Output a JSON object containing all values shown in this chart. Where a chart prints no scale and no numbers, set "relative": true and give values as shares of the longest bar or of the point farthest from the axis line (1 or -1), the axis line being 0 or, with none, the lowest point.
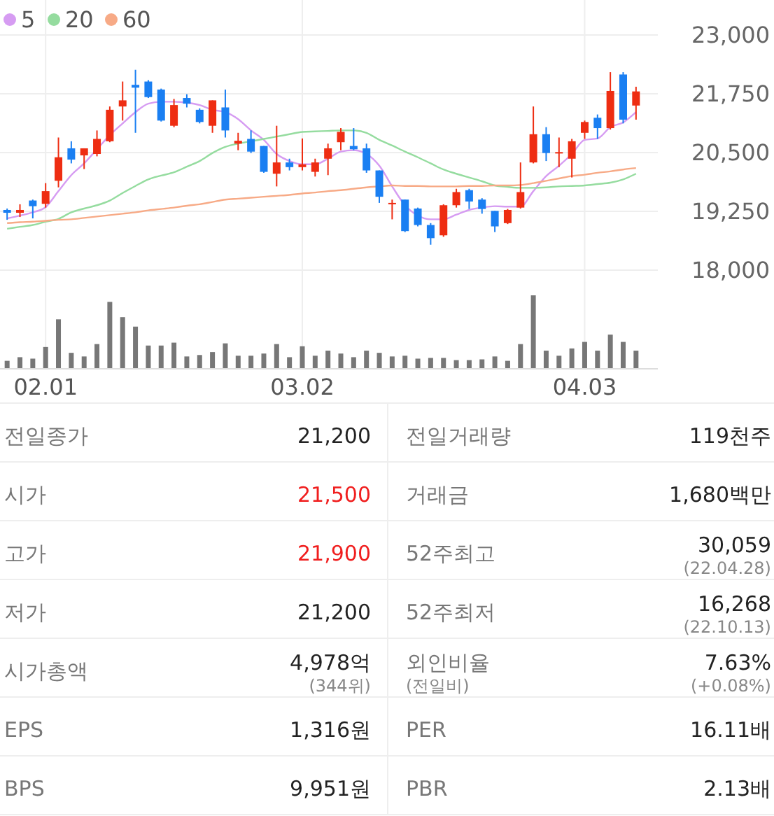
{
  "chart_data": [
    {
      "type": "candlestick",
      "categories": [
        null,
        null,
        null,
        "02.01",
        null,
        null,
        null,
        null,
        null,
        null,
        null,
        null,
        null,
        null,
        null,
        null,
        null,
        null,
        null,
        null,
        null,
        null,
        null,
        "03.02",
        null,
        null,
        null,
        null,
        null,
        null,
        null,
        null,
        null,
        null,
        null,
        null,
        null,
        null,
        null,
        null,
        null,
        null,
        null,
        null,
        null,
        "04.03",
        null,
        null,
        null,
        null
      ],
      "ohlc": [
        [
          19280,
          19310,
          19070,
          19220
        ],
        [
          19220,
          19400,
          19130,
          19280
        ],
        [
          19480,
          19500,
          19100,
          19360
        ],
        [
          19410,
          19850,
          19330,
          19680
        ],
        [
          19900,
          20820,
          19760,
          20400
        ],
        [
          20590,
          20740,
          20270,
          20350
        ],
        [
          20440,
          20590,
          20150,
          20590
        ],
        [
          20470,
          20970,
          20420,
          20790
        ],
        [
          20740,
          21480,
          20720,
          21410
        ],
        [
          21480,
          22010,
          21180,
          21610
        ],
        [
          21940,
          22260,
          20920,
          21880
        ],
        [
          22010,
          22040,
          21660,
          21680
        ],
        [
          21840,
          21860,
          21160,
          21180
        ],
        [
          21070,
          21640,
          21040,
          21510
        ],
        [
          21660,
          21740,
          21460,
          21540
        ],
        [
          21410,
          21440,
          21120,
          21150
        ],
        [
          21070,
          21610,
          20920,
          21610
        ],
        [
          21460,
          21840,
          20820,
          20970
        ],
        [
          20690,
          20920,
          20550,
          20750
        ],
        [
          20790,
          20970,
          20490,
          20520
        ],
        [
          20640,
          20640,
          20070,
          20090
        ],
        [
          20050,
          21070,
          19780,
          20290
        ],
        [
          20290,
          20370,
          20120,
          20190
        ],
        [
          20190,
          20800,
          20120,
          20250
        ],
        [
          20090,
          20370,
          19990,
          20290
        ],
        [
          20370,
          20690,
          20020,
          20590
        ],
        [
          20720,
          21020,
          20550,
          20940
        ],
        [
          20640,
          21020,
          20550,
          20570
        ],
        [
          20590,
          20690,
          20070,
          20120
        ],
        [
          20120,
          20120,
          19430,
          19560
        ],
        [
          19400,
          19500,
          19080,
          19430
        ],
        [
          19500,
          19500,
          18810,
          18830
        ],
        [
          19310,
          19330,
          18930,
          18960
        ],
        [
          18960,
          19000,
          18540,
          18680
        ],
        [
          18740,
          19400,
          18710,
          19380
        ],
        [
          19380,
          19730,
          19330,
          19660
        ],
        [
          19700,
          19730,
          19300,
          19460
        ],
        [
          19500,
          19530,
          19200,
          19300
        ],
        [
          19260,
          19260,
          18810,
          18930
        ],
        [
          19000,
          19300,
          18980,
          19280
        ],
        [
          19330,
          20290,
          19310,
          19660
        ],
        [
          20290,
          21480,
          20270,
          20890
        ],
        [
          20890,
          21040,
          20320,
          20490
        ],
        [
          20480,
          20820,
          20190,
          20510
        ],
        [
          20370,
          20790,
          19970,
          20740
        ],
        [
          20920,
          21180,
          20790,
          21150
        ],
        [
          21240,
          21310,
          20790,
          21020
        ],
        [
          21020,
          22210,
          20990,
          21810
        ],
        [
          22160,
          22210,
          21120,
          21200
        ],
        [
          21500,
          21900,
          21200,
          21800
        ]
      ],
      "colors": [
        "#1a7ff2",
        "#ee2d12",
        "#1a7ff2",
        "#ee2d12",
        "#ee2d12",
        "#1a7ff2",
        "#ee2d12",
        "#ee2d12",
        "#ee2d12",
        "#ee2d12",
        "#1a7ff2",
        "#1a7ff2",
        "#1a7ff2",
        "#ee2d12",
        "#1a7ff2",
        "#1a7ff2",
        "#ee2d12",
        "#1a7ff2",
        "#ee2d12",
        "#1a7ff2",
        "#1a7ff2",
        "#ee2d12",
        "#1a7ff2",
        "#ee2d12",
        "#ee2d12",
        "#ee2d12",
        "#ee2d12",
        "#1a7ff2",
        "#1a7ff2",
        "#1a7ff2",
        "#ee2d12",
        "#1a7ff2",
        "#1a7ff2",
        "#1a7ff2",
        "#ee2d12",
        "#ee2d12",
        "#1a7ff2",
        "#1a7ff2",
        "#1a7ff2",
        "#ee2d12",
        "#ee2d12",
        "#ee2d12",
        "#1a7ff2",
        "#ee2d12",
        "#ee2d12",
        "#ee2d12",
        "#1a7ff2",
        "#ee2d12",
        "#1a7ff2",
        "#ee2d12"
      ],
      "series": [
        {
          "type": "line",
          "name": "5",
          "color": "#d69cf2",
          "values": [
            19100,
            19160,
            19230,
            19340,
            19680,
            20020,
            20270,
            20570,
            20870,
            21120,
            21360,
            21540,
            21580,
            21580,
            21560,
            21510,
            21410,
            21360,
            21210,
            20970,
            20770,
            20470,
            20320,
            20250,
            20250,
            20370,
            20520,
            20550,
            20470,
            20220,
            19780,
            19380,
            19160,
            19080,
            19080,
            19180,
            19280,
            19330,
            19360,
            19350,
            19350,
            19680,
            20000,
            20220,
            20470,
            20770,
            20800,
            21040,
            21140,
            21360
          ]
        },
        {
          "type": "line",
          "name": "20",
          "color": "#95dc9f",
          "values": [
            18880,
            18920,
            18960,
            19030,
            19090,
            19230,
            19310,
            19380,
            19480,
            19640,
            19790,
            19930,
            20010,
            20080,
            20200,
            20320,
            20490,
            20620,
            20690,
            20740,
            20790,
            20840,
            20890,
            20940,
            20950,
            20960,
            20970,
            20970,
            20920,
            20770,
            20650,
            20520,
            20400,
            20270,
            20140,
            20050,
            19970,
            19890,
            19800,
            19770,
            19750,
            19750,
            19760,
            19780,
            19790,
            19800,
            19830,
            19860,
            19930,
            20050
          ]
        },
        {
          "type": "line",
          "name": "60",
          "color": "#f7aa86",
          "values": [
            19000,
            19020,
            19030,
            19050,
            19070,
            19080,
            19110,
            19140,
            19170,
            19200,
            19230,
            19270,
            19300,
            19330,
            19370,
            19400,
            19450,
            19500,
            19520,
            19540,
            19560,
            19580,
            19600,
            19630,
            19650,
            19680,
            19700,
            19730,
            19760,
            19780,
            19800,
            19790,
            19790,
            19780,
            19780,
            19780,
            19790,
            19790,
            19800,
            19800,
            19810,
            19850,
            19900,
            19950,
            20000,
            20030,
            20070,
            20100,
            20140,
            20170
          ]
        }
      ],
      "ylim": [
        18000,
        23000
      ],
      "yticks": [
        {
          "value": 18000,
          "label": "18,000"
        },
        {
          "value": 19250,
          "label": "19,250"
        },
        {
          "value": 20500,
          "label": "20,500"
        },
        {
          "value": 21750,
          "label": "21,750"
        },
        {
          "value": 23000,
          "label": "23,000"
        }
      ],
      "grid": true,
      "legend": "top left",
      "tick_labels": "y"
    },
    {
      "type": "bar",
      "relative": true,
      "categories": [
        null,
        null,
        null,
        "02.01",
        null,
        null,
        null,
        null,
        null,
        null,
        null,
        null,
        null,
        null,
        null,
        null,
        null,
        null,
        null,
        null,
        null,
        null,
        null,
        "03.02",
        null,
        null,
        null,
        null,
        null,
        null,
        null,
        null,
        null,
        null,
        null,
        null,
        null,
        null,
        null,
        null,
        null,
        null,
        null,
        null,
        null,
        "04.03",
        null,
        null,
        null,
        null
      ],
      "values": [
        0.1,
        0.15,
        0.13,
        0.29,
        0.67,
        0.21,
        0.16,
        0.33,
        0.91,
        0.7,
        0.57,
        0.31,
        0.31,
        0.35,
        0.16,
        0.18,
        0.22,
        0.34,
        0.17,
        0.17,
        0.2,
        0.33,
        0.15,
        0.3,
        0.17,
        0.24,
        0.2,
        0.15,
        0.24,
        0.21,
        0.16,
        0.17,
        0.13,
        0.14,
        0.14,
        0.11,
        0.11,
        0.12,
        0.16,
        0.1,
        0.33,
        1,
        0.24,
        0.17,
        0.27,
        0.36,
        0.24,
        0.46,
        0.36,
        0.24
      ],
      "color": "#777777",
      "grid": "x",
      "tick_labels": "x"
    },
    {
      "type": "other",
      "cell_labels": [
        [
          "전일종가",
          null,
          "21,200",
          null,
          "전일거래량",
          null,
          "119천주",
          null
        ],
        [
          "시가",
          null,
          "21,500",
          null,
          "거래금",
          null,
          "1,680백만",
          null
        ],
        [
          "고가",
          null,
          "21,900",
          null,
          "52주최고",
          null,
          "30,059",
          "(22.04.28)"
        ],
        [
          "저가",
          null,
          "21,200",
          null,
          "52주최저",
          null,
          "16,268",
          "(22.10.13)"
        ],
        [
          "시가총액",
          null,
          "4,978억",
          "(344위)",
          "외인비율",
          "(전일비)",
          "7.63%",
          "(+0.08%)"
        ],
        [
          "EPS",
          null,
          "1,316원",
          null,
          "PER",
          null,
          "16.11배",
          null
        ],
        [
          "BPS",
          null,
          "9,951원",
          null,
          "PBR",
          null,
          "2.13배",
          null
        ]
      ],
      "colors": [
        "#222222",
        "#222222",
        "#f01e1e",
        "#222222",
        "#f01e1e",
        "#222222",
        "#222222",
        "#222222",
        "#222222",
        "#222222",
        "#222222",
        "#222222",
        "#222222",
        "#222222"
      ]
    }
  ]
}
